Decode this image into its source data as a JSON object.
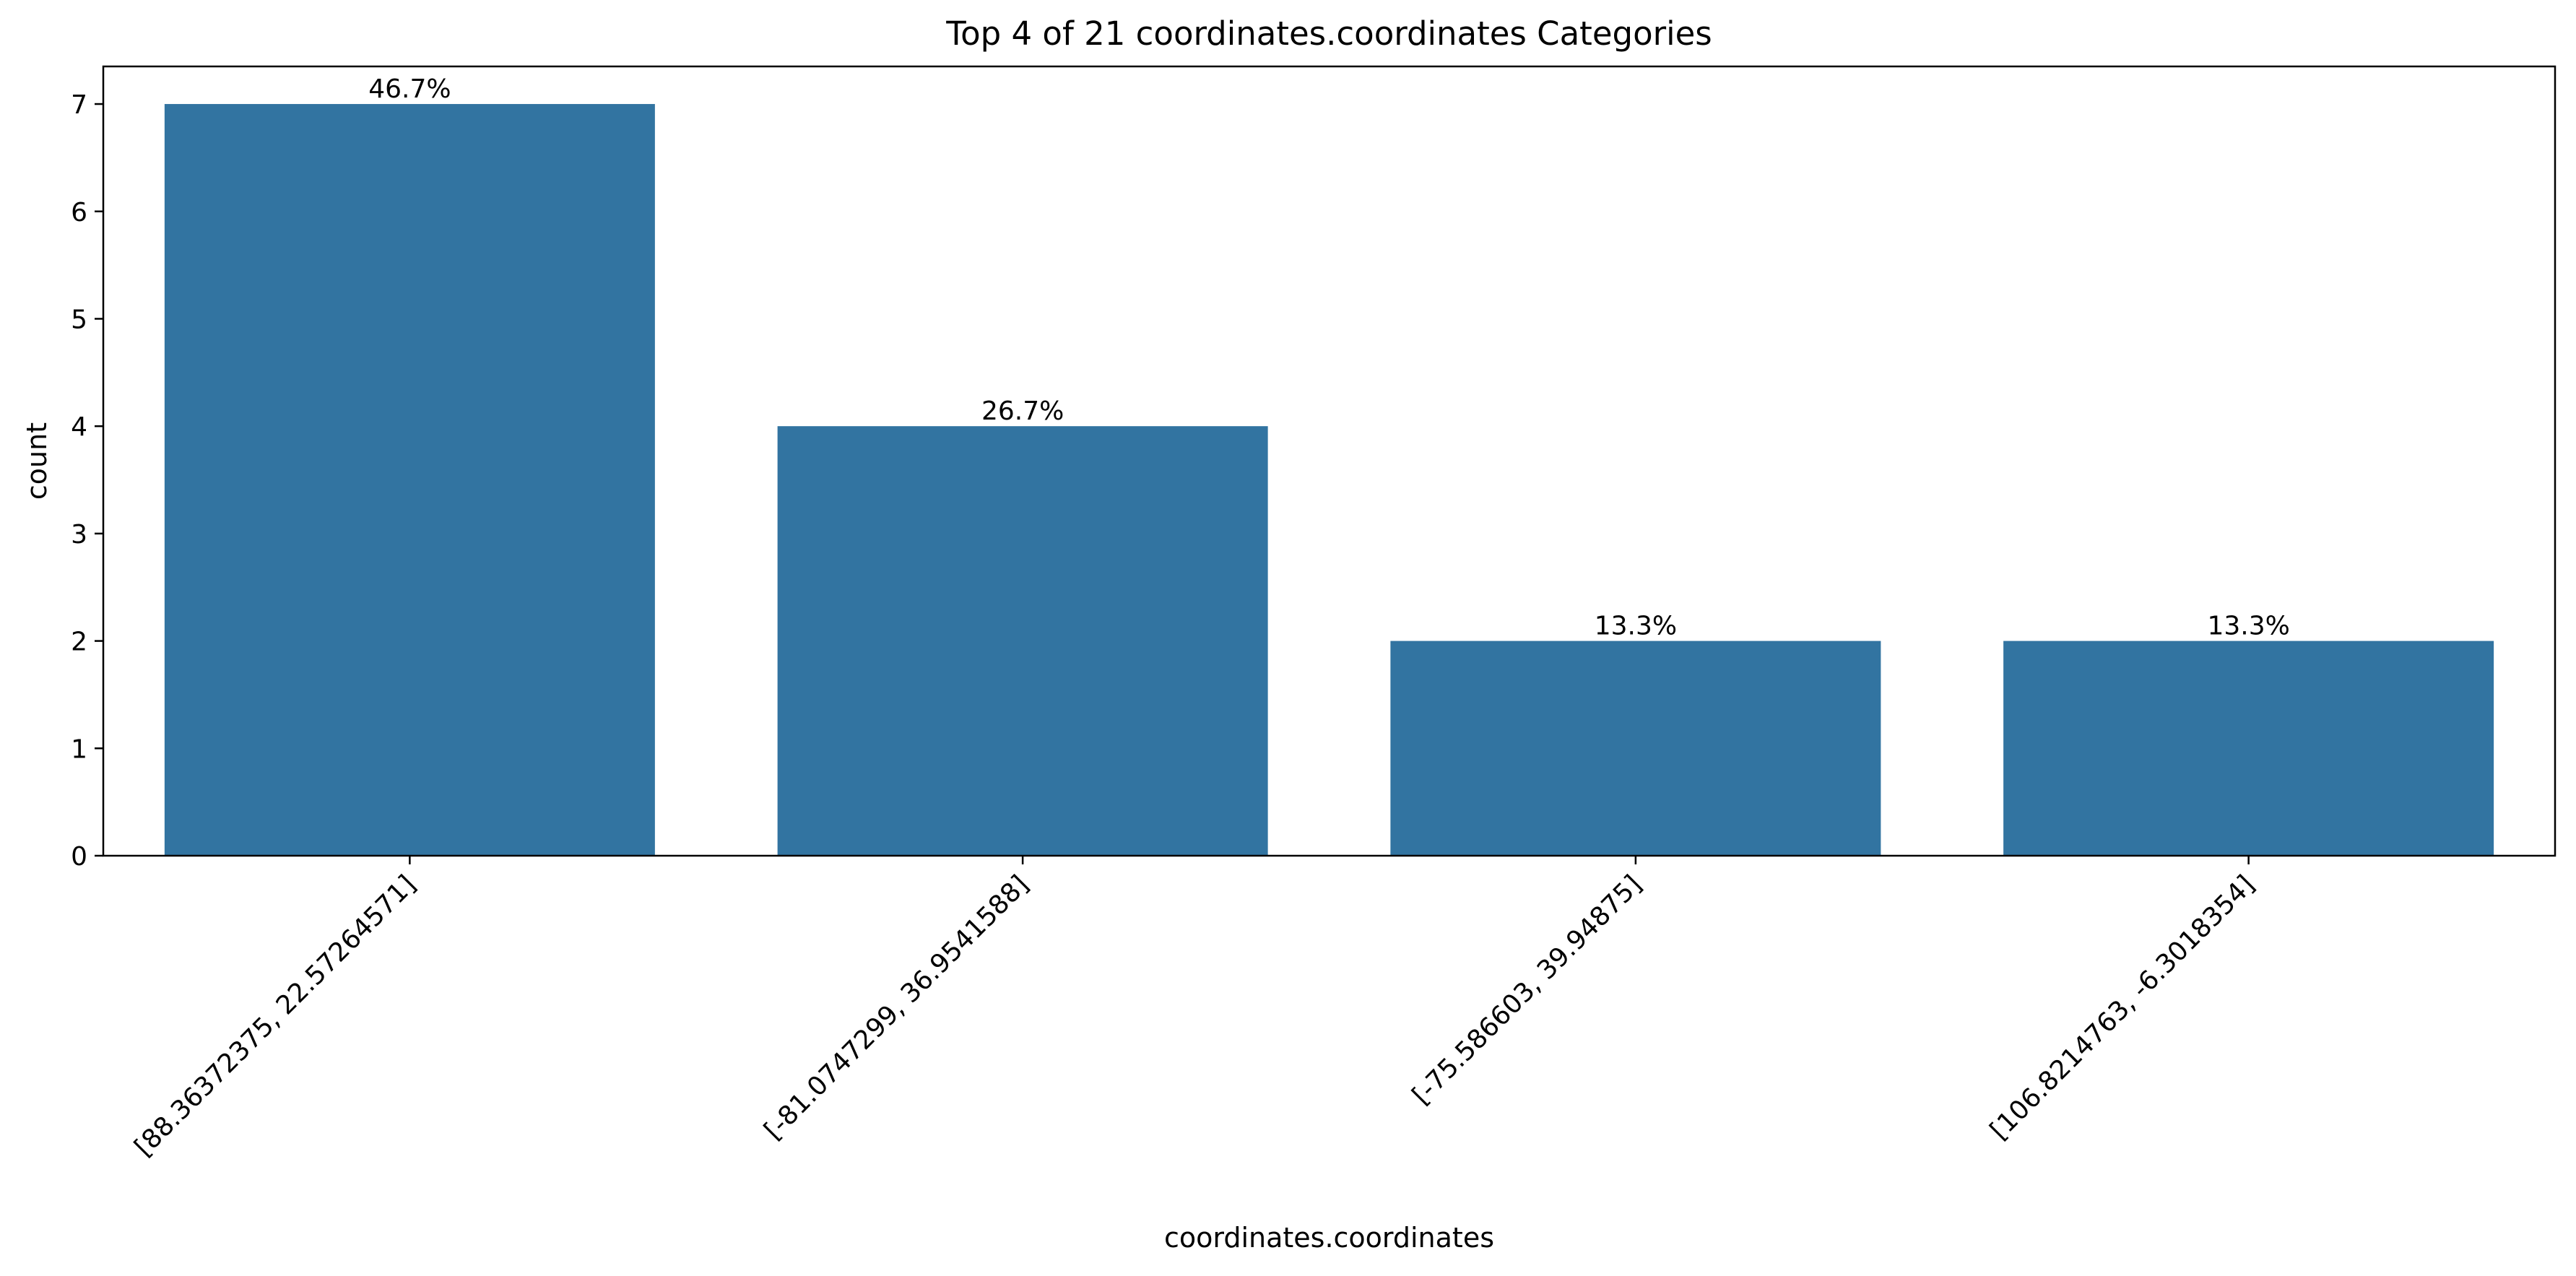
{
  "chart_data": {
    "type": "bar",
    "title": "Top 4 of 21 coordinates.coordinates Categories",
    "xlabel": "coordinates.coordinates",
    "ylabel": "count",
    "categories": [
      "[88.36372375, 22.57264571]",
      "[-81.0747299, 36.9541588]",
      "[-75.586603, 39.94875]",
      "[106.8214763, -6.3018354]"
    ],
    "values": [
      7,
      4,
      2,
      2
    ],
    "data_labels": [
      "46.7%",
      "26.7%",
      "13.3%",
      "13.3%"
    ],
    "yticks": [
      "0",
      "1",
      "2",
      "3",
      "4",
      "5",
      "6",
      "7"
    ],
    "ylim": [
      0,
      7.35
    ],
    "grid": false,
    "bar_color": "#3274a1",
    "legend": "none"
  }
}
